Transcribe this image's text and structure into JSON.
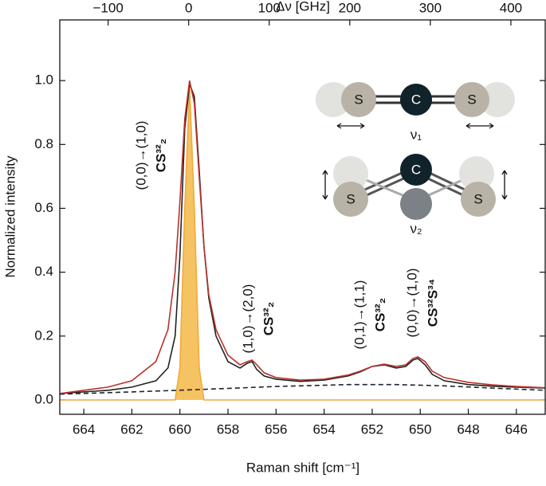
{
  "chart_data": {
    "type": "line",
    "xlabel": "Raman shift [cm⁻¹]",
    "ylabel": "Normalized intensity",
    "x2label": "Δν [GHz]",
    "xlim": [
      665,
      644.8
    ],
    "xticks": [
      664,
      662,
      660,
      658,
      656,
      654,
      652,
      650,
      648,
      646
    ],
    "ylim": [
      -0.045,
      1.19
    ],
    "yticks": [
      {
        "value": 0,
        "label": "0.0"
      },
      0.2,
      0.4,
      0.6,
      0.8,
      {
        "value": 1,
        "label": "1.0"
      }
    ],
    "x2lim": [
      -160,
      442.6
    ],
    "x2ticks": [
      {
        "value": -100,
        "label": "−100"
      },
      0,
      100,
      200,
      300,
      400
    ],
    "series": [
      {
        "color": "#f2a93b",
        "fill": "#f6c363",
        "style": "solid",
        "x": [
          665,
          660.2,
          660,
          659.8,
          659.6,
          659.4,
          659.2,
          659,
          644.8
        ],
        "values": [
          0,
          0,
          0.1,
          0.6,
          0.98,
          0.6,
          0.1,
          0,
          0
        ]
      },
      {
        "color": "#1b2633",
        "style": "dashed",
        "x": [
          665,
          662,
          659,
          656,
          653,
          651,
          649,
          647,
          644.8
        ],
        "values": [
          0.018,
          0.025,
          0.033,
          0.042,
          0.048,
          0.048,
          0.044,
          0.037,
          0.03
        ]
      },
      {
        "color": "#222222",
        "style": "solid",
        "x": [
          665,
          663,
          662,
          661,
          660.5,
          660.2,
          660,
          659.8,
          659.6,
          659.4,
          659.2,
          659,
          658.8,
          658.5,
          658,
          657.5,
          657.2,
          657,
          656.8,
          656.5,
          656,
          655,
          654,
          653,
          652.5,
          652,
          651.5,
          651,
          650.6,
          650.3,
          650.1,
          649.8,
          649.5,
          649,
          648,
          647,
          646,
          644.8
        ],
        "values": [
          0.02,
          0.03,
          0.04,
          0.06,
          0.1,
          0.2,
          0.45,
          0.85,
          0.99,
          0.95,
          0.72,
          0.48,
          0.32,
          0.2,
          0.12,
          0.1,
          0.115,
          0.12,
          0.095,
          0.075,
          0.065,
          0.058,
          0.062,
          0.075,
          0.088,
          0.105,
          0.11,
          0.1,
          0.105,
          0.125,
          0.13,
          0.11,
          0.08,
          0.06,
          0.048,
          0.043,
          0.04,
          0.037
        ]
      },
      {
        "color": "#b8322b",
        "style": "solid",
        "x": [
          665,
          663,
          662,
          661,
          660.5,
          660.2,
          660,
          659.8,
          659.6,
          659.4,
          659.2,
          659,
          658.8,
          658.5,
          658,
          657.5,
          657.2,
          657,
          656.8,
          656.5,
          656,
          655,
          654,
          653,
          652.5,
          652,
          651.5,
          651,
          650.6,
          650.3,
          650.1,
          649.8,
          649.5,
          649,
          648,
          647,
          646,
          644.8
        ],
        "values": [
          0.02,
          0.04,
          0.06,
          0.12,
          0.22,
          0.4,
          0.62,
          0.88,
          1.0,
          0.93,
          0.7,
          0.48,
          0.33,
          0.22,
          0.14,
          0.11,
          0.12,
          0.125,
          0.11,
          0.085,
          0.07,
          0.062,
          0.065,
          0.078,
          0.09,
          0.105,
          0.112,
          0.105,
          0.11,
          0.13,
          0.135,
          0.12,
          0.09,
          0.07,
          0.055,
          0.047,
          0.042,
          0.038
        ]
      }
    ],
    "annotations": [
      {
        "transition": "(0,0)→(1,0)",
        "species": "CS³²₂"
      },
      {
        "transition": "(1,0)→(2,0)",
        "species": "CS³²₂"
      },
      {
        "transition": "(0,1)→(1,1)",
        "species": "CS³²₂"
      },
      {
        "transition": "(0,0)→(1,0)",
        "species": "CS³²S³⁴"
      }
    ],
    "molecule": {
      "atoms": [
        "S",
        "C",
        "S"
      ],
      "modes": [
        "ν₁",
        "ν₂"
      ]
    }
  }
}
